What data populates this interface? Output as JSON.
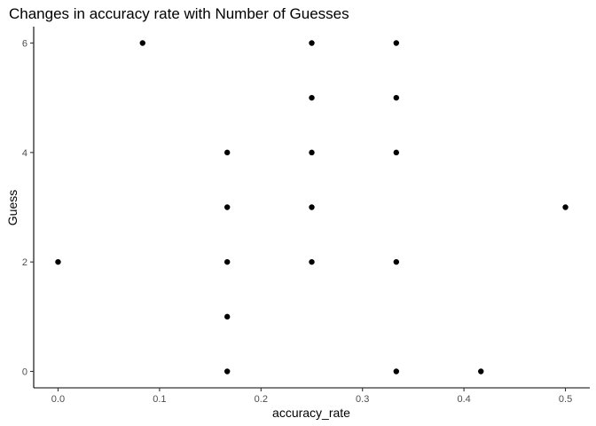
{
  "chart_data": {
    "type": "scatter",
    "title": "Changes in accuracy rate with Number of Guesses",
    "xlabel": "accuracy_rate",
    "ylabel": "Guess",
    "xlim": [
      -0.024,
      0.524
    ],
    "ylim": [
      -0.3,
      6.3
    ],
    "x_ticks": [
      0.0,
      0.1,
      0.2,
      0.3,
      0.4,
      0.5
    ],
    "x_tick_labels": [
      "0.0",
      "0.1",
      "0.2",
      "0.3",
      "0.4",
      "0.5"
    ],
    "y_ticks": [
      0,
      2,
      4,
      6
    ],
    "y_tick_labels": [
      "0",
      "2",
      "4",
      "6"
    ],
    "grid": false,
    "legend": "none",
    "point_color": "#000000",
    "points": [
      {
        "x": 0.0,
        "y": 2
      },
      {
        "x": 0.0833,
        "y": 6
      },
      {
        "x": 0.1667,
        "y": 0
      },
      {
        "x": 0.1667,
        "y": 1
      },
      {
        "x": 0.1667,
        "y": 2
      },
      {
        "x": 0.1667,
        "y": 3
      },
      {
        "x": 0.1667,
        "y": 4
      },
      {
        "x": 0.25,
        "y": 2
      },
      {
        "x": 0.25,
        "y": 3
      },
      {
        "x": 0.25,
        "y": 4
      },
      {
        "x": 0.25,
        "y": 5
      },
      {
        "x": 0.25,
        "y": 6
      },
      {
        "x": 0.3333,
        "y": 0
      },
      {
        "x": 0.3333,
        "y": 2
      },
      {
        "x": 0.3333,
        "y": 4
      },
      {
        "x": 0.3333,
        "y": 5
      },
      {
        "x": 0.3333,
        "y": 6
      },
      {
        "x": 0.4167,
        "y": 0
      },
      {
        "x": 0.5,
        "y": 3
      }
    ]
  }
}
